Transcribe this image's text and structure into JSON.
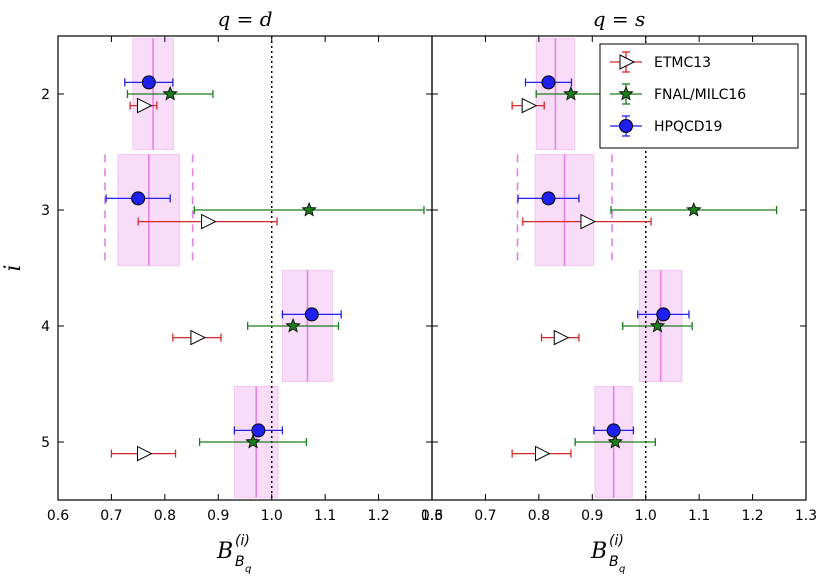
{
  "chart_data": {
    "type": "scatter",
    "ylabel": "i",
    "xlabel_main": "B",
    "xlabel_sup": "(i)",
    "xlabel_sub": "B",
    "xlabel_subsub": "q",
    "xlim": [
      0.6,
      1.3
    ],
    "xticks": [
      0.6,
      0.7,
      0.8,
      0.9,
      1.0,
      1.1,
      1.2,
      1.3
    ],
    "xtick_labels": [
      "0.6",
      "0.7",
      "0.8",
      "0.9",
      "1.0",
      "1.1",
      "1.2",
      "1.3"
    ],
    "categories": [
      2,
      3,
      4,
      5
    ],
    "ytick_labels": [
      "2",
      "3",
      "4",
      "5"
    ],
    "ylim": [
      1.5,
      5.5
    ],
    "colors": {
      "ETMC13": "#d62728",
      "FNAL/MILC16": "#1a7f1a",
      "HPQCD19": "#1f1ff0",
      "band": "#e580e5"
    },
    "legend": [
      "ETMC13",
      "FNAL/MILC16",
      "HPQCD19"
    ],
    "panels": [
      {
        "title": "q = d",
        "series": [
          {
            "name": "ETMC13",
            "marker": "triangle-right",
            "points": [
              {
                "i": 2,
                "x": 0.76,
                "xerr": 0.025
              },
              {
                "i": 3,
                "x": 0.88,
                "xerr": 0.13
              },
              {
                "i": 4,
                "x": 0.86,
                "xerr": 0.045
              },
              {
                "i": 5,
                "x": 0.76,
                "xerr": 0.06
              }
            ]
          },
          {
            "name": "FNAL/MILC16",
            "marker": "star",
            "points": [
              {
                "i": 2,
                "x": 0.81,
                "xerr": 0.08
              },
              {
                "i": 3,
                "x": 1.07,
                "xerr": 0.215
              },
              {
                "i": 4,
                "x": 1.04,
                "xerr": 0.085
              },
              {
                "i": 5,
                "x": 0.965,
                "xerr": 0.1
              }
            ]
          },
          {
            "name": "HPQCD19",
            "marker": "circle",
            "points": [
              {
                "i": 2,
                "x": 0.77,
                "xerr": 0.045
              },
              {
                "i": 3,
                "x": 0.75,
                "xerr": 0.06
              },
              {
                "i": 4,
                "x": 1.075,
                "xerr": 0.055
              },
              {
                "i": 5,
                "x": 0.975,
                "xerr": 0.045
              }
            ]
          }
        ],
        "bands": [
          {
            "i": 2,
            "center": 0.778,
            "low": 0.74,
            "high": 0.816
          },
          {
            "i": 3,
            "center": 0.77,
            "low": 0.712,
            "high": 0.828,
            "outer_low": 0.688,
            "outer_high": 0.852
          },
          {
            "i": 4,
            "center": 1.067,
            "low": 1.02,
            "high": 1.114
          },
          {
            "i": 5,
            "center": 0.971,
            "low": 0.93,
            "high": 1.012
          }
        ]
      },
      {
        "title": "q = s",
        "series": [
          {
            "name": "ETMC13",
            "marker": "triangle-right",
            "points": [
              {
                "i": 2,
                "x": 0.78,
                "xerr": 0.03
              },
              {
                "i": 3,
                "x": 0.89,
                "xerr": 0.12
              },
              {
                "i": 4,
                "x": 0.84,
                "xerr": 0.035
              },
              {
                "i": 5,
                "x": 0.805,
                "xerr": 0.055
              }
            ]
          },
          {
            "name": "FNAL/MILC16",
            "marker": "star",
            "points": [
              {
                "i": 2,
                "x": 0.86,
                "xerr": 0.065
              },
              {
                "i": 3,
                "x": 1.09,
                "xerr": 0.155
              },
              {
                "i": 4,
                "x": 1.022,
                "xerr": 0.065
              },
              {
                "i": 5,
                "x": 0.943,
                "xerr": 0.075
              }
            ]
          },
          {
            "name": "HPQCD19",
            "marker": "circle",
            "points": [
              {
                "i": 2,
                "x": 0.818,
                "xerr": 0.043
              },
              {
                "i": 3,
                "x": 0.818,
                "xerr": 0.057
              },
              {
                "i": 4,
                "x": 1.033,
                "xerr": 0.048
              },
              {
                "i": 5,
                "x": 0.94,
                "xerr": 0.037
              }
            ]
          }
        ],
        "bands": [
          {
            "i": 2,
            "center": 0.831,
            "low": 0.795,
            "high": 0.867
          },
          {
            "i": 3,
            "center": 0.848,
            "low": 0.793,
            "high": 0.903,
            "outer_low": 0.76,
            "outer_high": 0.937
          },
          {
            "i": 4,
            "center": 1.028,
            "low": 0.988,
            "high": 1.068
          },
          {
            "i": 5,
            "center": 0.94,
            "low": 0.905,
            "high": 0.975
          }
        ]
      }
    ]
  }
}
